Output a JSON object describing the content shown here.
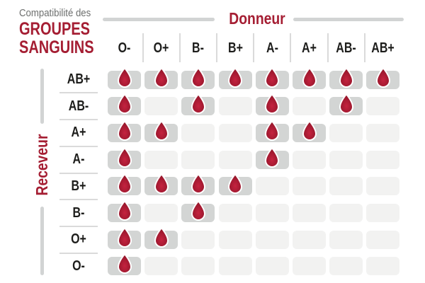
{
  "title": {
    "eyebrow": "Compatibilité des",
    "line1": "GROUPES",
    "line2": "SANGUINS"
  },
  "axes": {
    "donor": "Donneur",
    "receiver": "Receveur"
  },
  "icon": "blood-drop-icon",
  "colors": {
    "accent_red": "#A51E33",
    "drop_red_center": "#C5233F",
    "drop_red_edge": "#8E1526",
    "label_black": "#1D1D1B",
    "title_gray": "#6D6F6E",
    "cell_filled": "#D3D5D4",
    "cell_empty": "#F2F2F1",
    "divider_gray": "#DADADA",
    "rule_gray": "#D2D4D4",
    "background": "#FFFFFF"
  },
  "chart_data": {
    "type": "heatmap",
    "title": "Compatibilité des GROUPES SANGUINS",
    "x_axis_label": "Donneur",
    "y_axis_label": "Receveur",
    "columns": [
      "O-",
      "O+",
      "B-",
      "B+",
      "A-",
      "A+",
      "AB-",
      "AB+"
    ],
    "rows": [
      "AB+",
      "AB-",
      "A+",
      "A-",
      "B+",
      "B-",
      "O+",
      "O-"
    ],
    "matrix": [
      [
        1,
        1,
        1,
        1,
        1,
        1,
        1,
        1
      ],
      [
        1,
        0,
        1,
        0,
        1,
        0,
        1,
        0
      ],
      [
        1,
        1,
        0,
        0,
        1,
        1,
        0,
        0
      ],
      [
        1,
        0,
        0,
        0,
        1,
        0,
        0,
        0
      ],
      [
        1,
        1,
        1,
        1,
        0,
        0,
        0,
        0
      ],
      [
        1,
        0,
        1,
        0,
        0,
        0,
        0,
        0
      ],
      [
        1,
        1,
        0,
        0,
        0,
        0,
        0,
        0
      ],
      [
        1,
        0,
        0,
        0,
        0,
        0,
        0,
        0
      ]
    ],
    "cell_meaning": "1 = compatible (goutte de sang affichée), 0 = incompatible (case vide)",
    "legend_position": "none",
    "grid": false
  }
}
